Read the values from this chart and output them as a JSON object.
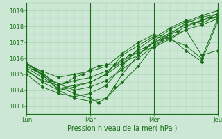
{
  "title": "Pression niveau de la mer( hPa )",
  "ylabel_vals": [
    1013,
    1014,
    1015,
    1016,
    1017,
    1018,
    1019
  ],
  "ylim": [
    1012.5,
    1019.5
  ],
  "xlim": [
    0,
    72
  ],
  "xtick_positions": [
    0,
    24,
    48,
    72
  ],
  "xtick_labels": [
    "Lun",
    "Mar",
    "Mer",
    "Jeu"
  ],
  "bg_color": "#cce8d4",
  "grid_color": "#a8d4b4",
  "line_color": "#1a6e1a",
  "marker_color": "#1a6e1a",
  "series": [
    [
      0,
      1015.7,
      3,
      1015.3,
      6,
      1014.9,
      9,
      1014.6,
      12,
      1014.4,
      15,
      1014.5,
      18,
      1014.8,
      21,
      1015.0,
      24,
      1015.3,
      27,
      1015.5,
      30,
      1015.6,
      33,
      1015.6,
      36,
      1015.9,
      39,
      1016.2,
      42,
      1016.5,
      45,
      1016.7,
      48,
      1017.0,
      51,
      1017.2,
      54,
      1017.5,
      57,
      1017.7,
      60,
      1018.0,
      63,
      1018.2,
      66,
      1018.4,
      69,
      1018.6,
      72,
      1018.8
    ],
    [
      0,
      1015.7,
      6,
      1015.0,
      12,
      1014.0,
      18,
      1013.5,
      24,
      1013.3,
      30,
      1013.5,
      36,
      1014.5,
      42,
      1015.5,
      48,
      1016.8,
      54,
      1017.5,
      60,
      1018.2,
      66,
      1018.6,
      72,
      1018.8
    ],
    [
      0,
      1015.7,
      6,
      1015.1,
      12,
      1014.2,
      18,
      1013.8,
      24,
      1013.5,
      27,
      1013.2,
      30,
      1013.5,
      33,
      1014.2,
      36,
      1015.0,
      42,
      1016.2,
      48,
      1017.1,
      54,
      1017.8,
      60,
      1018.3,
      66,
      1018.7,
      72,
      1019.0
    ],
    [
      0,
      1015.5,
      6,
      1015.0,
      12,
      1014.4,
      18,
      1014.0,
      24,
      1014.2,
      30,
      1014.6,
      36,
      1015.3,
      42,
      1016.0,
      48,
      1016.8,
      54,
      1017.3,
      60,
      1017.8,
      66,
      1018.1,
      72,
      1018.5
    ],
    [
      0,
      1015.4,
      6,
      1014.8,
      12,
      1014.1,
      18,
      1014.3,
      24,
      1014.5,
      30,
      1015.0,
      36,
      1015.7,
      42,
      1016.2,
      48,
      1017.0,
      54,
      1017.6,
      60,
      1018.1,
      66,
      1018.4,
      72,
      1018.6
    ],
    [
      0,
      1015.2,
      6,
      1014.6,
      12,
      1014.3,
      18,
      1014.6,
      24,
      1014.8,
      30,
      1015.2,
      36,
      1015.8,
      42,
      1016.4,
      48,
      1016.7,
      54,
      1017.2,
      60,
      1017.8,
      66,
      1016.2,
      72,
      1016.5
    ],
    [
      0,
      1015.3,
      6,
      1014.5,
      12,
      1014.0,
      18,
      1014.2,
      24,
      1014.5,
      30,
      1015.0,
      36,
      1016.2,
      42,
      1016.8,
      48,
      1017.4,
      54,
      1017.2,
      60,
      1016.8,
      66,
      1016.0,
      72,
      1018.5
    ],
    [
      0,
      1015.6,
      6,
      1015.2,
      12,
      1014.8,
      18,
      1015.0,
      24,
      1015.2,
      30,
      1015.5,
      36,
      1016.3,
      42,
      1017.0,
      48,
      1017.5,
      54,
      1017.3,
      60,
      1016.5,
      66,
      1015.8,
      72,
      1018.3
    ],
    [
      0,
      1015.0,
      6,
      1014.2,
      12,
      1013.8,
      18,
      1013.6,
      24,
      1013.8,
      30,
      1014.3,
      36,
      1015.5,
      42,
      1016.6,
      48,
      1017.3,
      54,
      1017.9,
      60,
      1018.4,
      66,
      1018.2,
      72,
      1018.7
    ]
  ]
}
